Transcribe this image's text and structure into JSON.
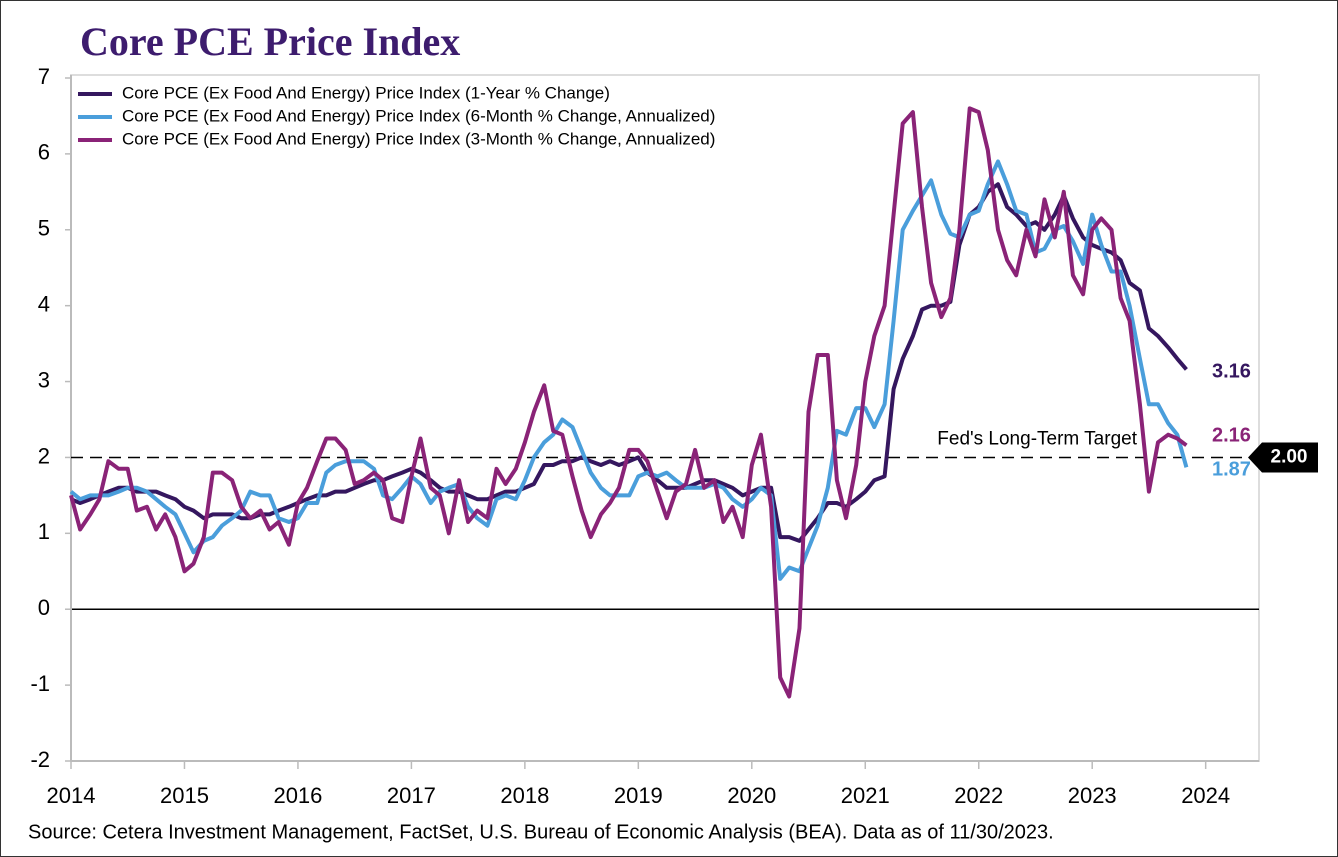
{
  "chart_data": {
    "type": "line",
    "title": "Core PCE Price Index",
    "source": "Source: Cetera Investment Management, FactSet, U.S. Bureau of Economic Analysis (BEA). Data as of 11/30/2023.",
    "x": [
      2014,
      2014.08,
      2014.17,
      2014.25,
      2014.33,
      2014.42,
      2014.5,
      2014.58,
      2014.67,
      2014.75,
      2014.83,
      2014.92,
      2015,
      2015.08,
      2015.17,
      2015.25,
      2015.33,
      2015.42,
      2015.5,
      2015.58,
      2015.67,
      2015.75,
      2015.83,
      2015.92,
      2016,
      2016.08,
      2016.17,
      2016.25,
      2016.33,
      2016.42,
      2016.5,
      2016.58,
      2016.67,
      2016.75,
      2016.83,
      2016.92,
      2017,
      2017.08,
      2017.17,
      2017.25,
      2017.33,
      2017.42,
      2017.5,
      2017.58,
      2017.67,
      2017.75,
      2017.83,
      2017.92,
      2018,
      2018.08,
      2018.17,
      2018.25,
      2018.33,
      2018.42,
      2018.5,
      2018.58,
      2018.67,
      2018.75,
      2018.83,
      2018.92,
      2019,
      2019.08,
      2019.17,
      2019.25,
      2019.33,
      2019.42,
      2019.5,
      2019.58,
      2019.67,
      2019.75,
      2019.83,
      2019.92,
      2020,
      2020.08,
      2020.17,
      2020.25,
      2020.33,
      2020.42,
      2020.5,
      2020.58,
      2020.67,
      2020.75,
      2020.83,
      2020.92,
      2021,
      2021.08,
      2021.17,
      2021.25,
      2021.33,
      2021.42,
      2021.5,
      2021.58,
      2021.67,
      2021.75,
      2021.83,
      2021.92,
      2022,
      2022.08,
      2022.17,
      2022.25,
      2022.33,
      2022.42,
      2022.5,
      2022.58,
      2022.67,
      2022.75,
      2022.83,
      2022.92,
      2023,
      2023.08,
      2023.17,
      2023.25,
      2023.33,
      2023.42,
      2023.5,
      2023.58,
      2023.67,
      2023.75,
      2023.83
    ],
    "series": [
      {
        "name": "Core PCE (Ex Food And Energy) Price Index (1-Year % Change)",
        "color": "#35175f",
        "values": [
          1.45,
          1.4,
          1.45,
          1.5,
          1.55,
          1.6,
          1.6,
          1.55,
          1.55,
          1.55,
          1.5,
          1.45,
          1.35,
          1.3,
          1.2,
          1.25,
          1.25,
          1.25,
          1.2,
          1.2,
          1.25,
          1.25,
          1.3,
          1.35,
          1.4,
          1.45,
          1.5,
          1.5,
          1.55,
          1.55,
          1.6,
          1.65,
          1.7,
          1.7,
          1.75,
          1.8,
          1.85,
          1.8,
          1.7,
          1.6,
          1.55,
          1.55,
          1.5,
          1.45,
          1.45,
          1.5,
          1.55,
          1.55,
          1.6,
          1.65,
          1.9,
          1.9,
          1.95,
          1.95,
          2.0,
          1.95,
          1.9,
          1.95,
          1.9,
          1.95,
          2.0,
          1.8,
          1.7,
          1.6,
          1.6,
          1.6,
          1.65,
          1.7,
          1.7,
          1.65,
          1.6,
          1.5,
          1.55,
          1.6,
          1.6,
          0.95,
          0.95,
          0.9,
          1.05,
          1.2,
          1.4,
          1.4,
          1.35,
          1.45,
          1.55,
          1.7,
          1.75,
          2.9,
          3.3,
          3.6,
          3.95,
          4.0,
          4.0,
          4.05,
          4.8,
          5.2,
          5.3,
          5.5,
          5.6,
          5.3,
          5.2,
          5.05,
          5.1,
          5.0,
          5.2,
          5.45,
          5.15,
          4.9,
          4.8,
          4.75,
          4.7,
          4.6,
          4.3,
          4.2,
          3.7,
          3.6,
          3.45,
          3.3,
          3.16
        ]
      },
      {
        "name": "Core PCE (Ex Food And Energy) Price Index (6-Month % Change, Annualized)",
        "color": "#4a9edb",
        "values": [
          1.55,
          1.45,
          1.5,
          1.5,
          1.5,
          1.55,
          1.6,
          1.6,
          1.55,
          1.45,
          1.35,
          1.25,
          1.0,
          0.75,
          0.9,
          0.95,
          1.1,
          1.2,
          1.3,
          1.55,
          1.5,
          1.5,
          1.2,
          1.15,
          1.2,
          1.4,
          1.4,
          1.8,
          1.9,
          1.95,
          1.95,
          1.95,
          1.85,
          1.5,
          1.45,
          1.6,
          1.75,
          1.65,
          1.4,
          1.55,
          1.6,
          1.65,
          1.35,
          1.2,
          1.1,
          1.45,
          1.5,
          1.45,
          1.7,
          2.0,
          2.2,
          2.3,
          2.5,
          2.4,
          2.1,
          1.8,
          1.6,
          1.5,
          1.5,
          1.5,
          1.75,
          1.8,
          1.75,
          1.8,
          1.7,
          1.6,
          1.6,
          1.6,
          1.65,
          1.6,
          1.45,
          1.35,
          1.45,
          1.6,
          1.5,
          0.4,
          0.55,
          0.5,
          0.8,
          1.1,
          1.6,
          2.35,
          2.3,
          2.65,
          2.65,
          2.4,
          2.7,
          3.8,
          5.0,
          5.25,
          5.45,
          5.65,
          5.2,
          4.95,
          4.9,
          5.2,
          5.25,
          5.6,
          5.9,
          5.6,
          5.25,
          5.2,
          4.7,
          4.75,
          5.0,
          5.05,
          4.85,
          4.55,
          5.2,
          4.8,
          4.45,
          4.45,
          4.0,
          3.3,
          2.7,
          2.7,
          2.45,
          2.3,
          1.87
        ]
      },
      {
        "name": "Core PCE (Ex Food And Energy) Price Index (3-Month % Change, Annualized)",
        "color": "#8a2377",
        "values": [
          1.5,
          1.05,
          1.25,
          1.45,
          1.95,
          1.85,
          1.85,
          1.3,
          1.35,
          1.05,
          1.25,
          0.95,
          0.5,
          0.6,
          0.95,
          1.8,
          1.8,
          1.7,
          1.35,
          1.2,
          1.3,
          1.05,
          1.15,
          0.85,
          1.4,
          1.6,
          1.95,
          2.25,
          2.25,
          2.1,
          1.65,
          1.7,
          1.8,
          1.7,
          1.2,
          1.15,
          1.75,
          2.25,
          1.6,
          1.5,
          1.0,
          1.7,
          1.15,
          1.3,
          1.2,
          1.85,
          1.65,
          1.85,
          2.2,
          2.6,
          2.95,
          2.35,
          2.3,
          1.75,
          1.3,
          0.95,
          1.25,
          1.4,
          1.6,
          2.1,
          2.1,
          1.95,
          1.55,
          1.2,
          1.55,
          1.65,
          2.1,
          1.6,
          1.7,
          1.15,
          1.35,
          0.95,
          1.9,
          2.3,
          1.35,
          -0.9,
          -1.15,
          -0.25,
          2.6,
          3.35,
          3.35,
          1.7,
          1.2,
          1.9,
          3.0,
          3.6,
          4.0,
          5.2,
          6.4,
          6.55,
          5.3,
          4.3,
          3.85,
          4.1,
          5.0,
          6.6,
          6.55,
          6.05,
          5.0,
          4.6,
          4.4,
          5.0,
          4.65,
          5.4,
          4.9,
          5.5,
          4.4,
          4.15,
          5.0,
          5.15,
          5.0,
          4.1,
          3.8,
          2.7,
          1.55,
          2.2,
          2.3,
          2.25,
          2.16
        ]
      }
    ],
    "target": {
      "value": 2,
      "label": "2.00",
      "text": "Fed's Long-Term Target"
    },
    "xlim": [
      2014,
      2024.47
    ],
    "xticks": [
      2014,
      2015,
      2016,
      2017,
      2018,
      2019,
      2020,
      2021,
      2022,
      2023,
      2024
    ],
    "ylim": [
      -2,
      7
    ],
    "yticks": [
      -2,
      -1,
      0,
      1,
      2,
      3,
      4,
      5,
      6,
      7
    ],
    "legend": "top-left"
  }
}
